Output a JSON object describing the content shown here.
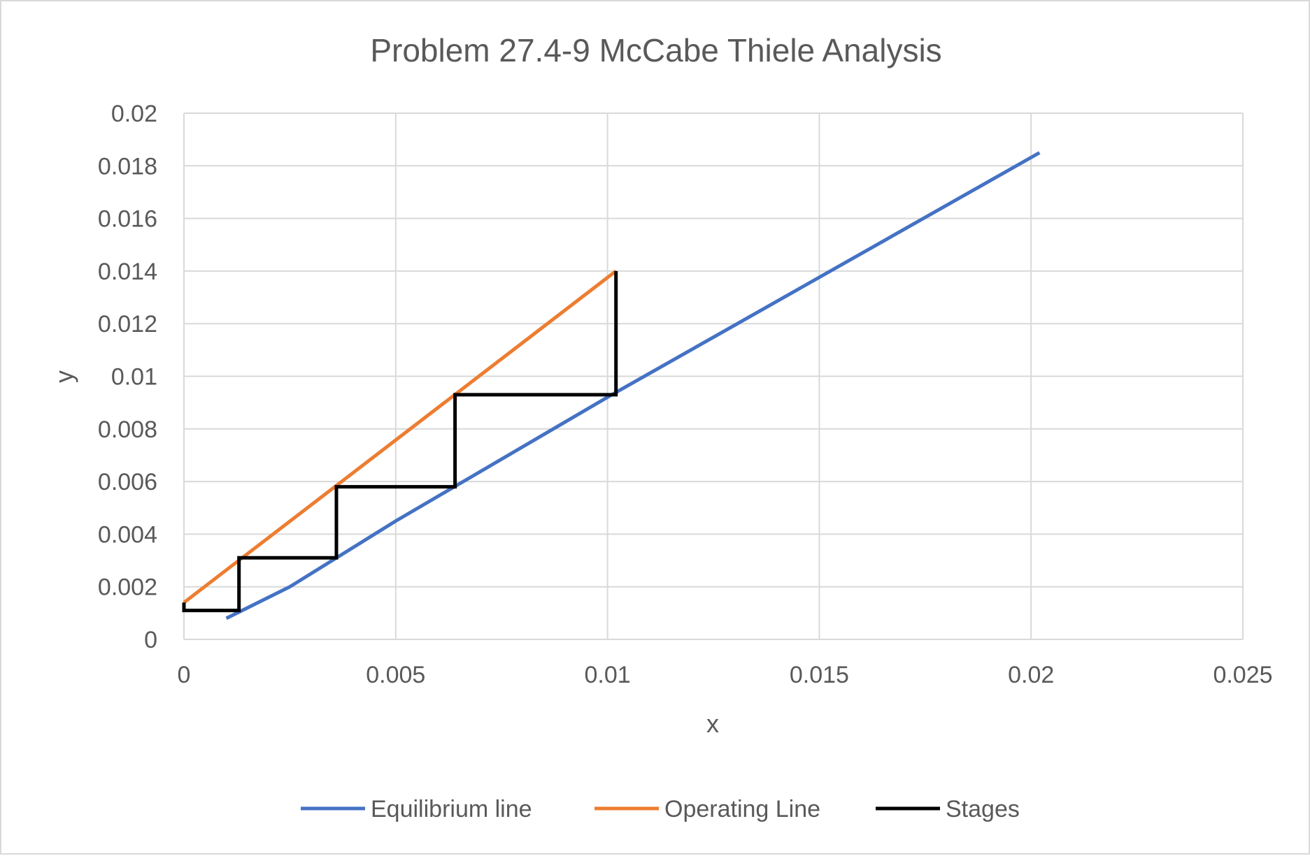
{
  "chart_data": {
    "type": "line",
    "title": "Problem 27.4-9 McCabe Thiele Analysis",
    "xlabel": "x",
    "ylabel": "y",
    "xlim": [
      0,
      0.025
    ],
    "ylim": [
      0,
      0.02
    ],
    "x_ticks": [
      "0",
      "0.005",
      "0.01",
      "0.015",
      "0.02",
      "0.025"
    ],
    "y_ticks": [
      "0",
      "0.002",
      "0.004",
      "0.006",
      "0.008",
      "0.01",
      "0.012",
      "0.014",
      "0.016",
      "0.018",
      "0.02"
    ],
    "grid": true,
    "legend_position": "bottom",
    "series": [
      {
        "name": "Equilibrium line",
        "color": "#4472C4",
        "points": [
          [
            0.001,
            0.0008
          ],
          [
            0.0025,
            0.002
          ],
          [
            0.005,
            0.0045
          ],
          [
            0.0101,
            0.0093
          ],
          [
            0.0202,
            0.0185
          ]
        ]
      },
      {
        "name": "Operating Line",
        "color": "#ED7D31",
        "points": [
          [
            0,
            0.0014
          ],
          [
            0.0102,
            0.014
          ]
        ]
      },
      {
        "name": "Stages",
        "color": "#000000",
        "points": [
          [
            0.0102,
            0.014
          ],
          [
            0.0102,
            0.0093
          ],
          [
            0.0064,
            0.0093
          ],
          [
            0.0064,
            0.0058
          ],
          [
            0.0036,
            0.0058
          ],
          [
            0.0036,
            0.0031
          ],
          [
            0.0013,
            0.0031
          ],
          [
            0.0013,
            0.0011
          ],
          [
            0,
            0.0011
          ],
          [
            0,
            0.0014
          ]
        ]
      }
    ]
  }
}
